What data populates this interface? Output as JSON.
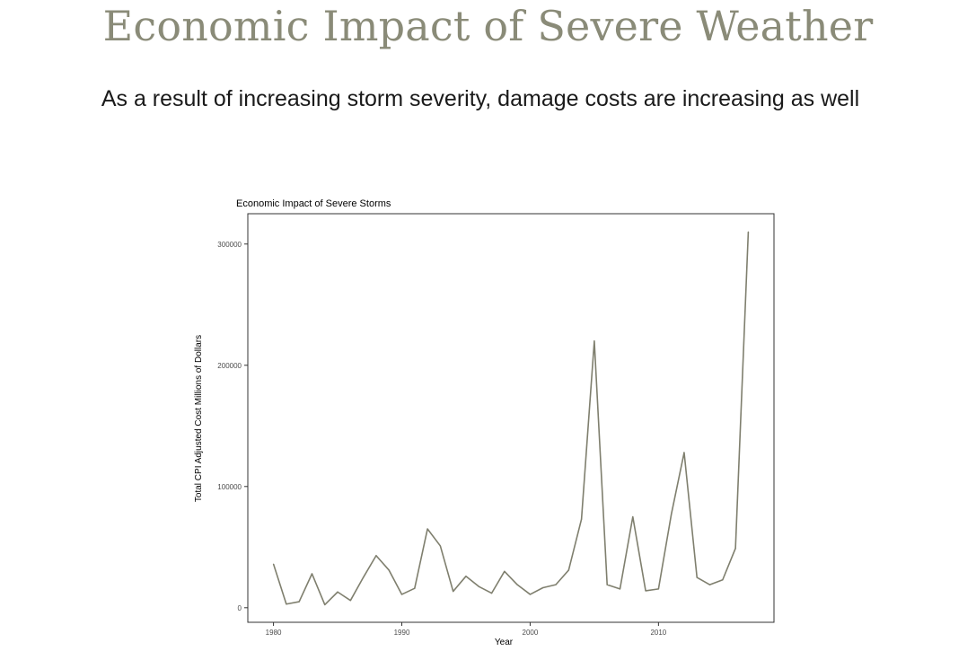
{
  "slide": {
    "title": "Economic Impact of Severe Weather",
    "subtitle": "As a result of increasing storm severity, damage costs are increasing as well"
  },
  "colors": {
    "title": "#8a8b78",
    "line": "#7f7f6e",
    "panel_border": "#333333"
  },
  "chart_data": {
    "type": "line",
    "title": "Economic Impact of Severe Storms",
    "xlabel": "Year",
    "ylabel": "Total CPI Adjusted Cost Millions of Dollars",
    "xlim": [
      1978,
      2019
    ],
    "ylim": [
      -12000,
      325000
    ],
    "x_ticks": [
      1980,
      1990,
      2000,
      2010
    ],
    "x_tick_labels": [
      "1980",
      "1990",
      "2000",
      "2010"
    ],
    "y_ticks": [
      0,
      100000,
      200000,
      300000
    ],
    "y_tick_labels": [
      "0",
      "100000",
      "200000",
      "300000"
    ],
    "grid": false,
    "legend": "none",
    "series": [
      {
        "x": [
          1980,
          1981,
          1982,
          1983,
          1984,
          1985,
          1986,
          1987,
          1988,
          1989,
          1990,
          1991,
          1992,
          1993,
          1994,
          1995,
          1996,
          1997,
          1998,
          1999,
          2000,
          2001,
          2002,
          2003,
          2004,
          2005,
          2006,
          2007,
          2008,
          2009,
          2010,
          2011,
          2012,
          2013,
          2014,
          2015,
          2016,
          2017
        ],
        "y": [
          36000,
          3000,
          5000,
          28000,
          2500,
          13000,
          6000,
          25000,
          43000,
          31000,
          11000,
          16000,
          65000,
          51000,
          13500,
          26000,
          17500,
          12000,
          30000,
          19000,
          11000,
          16500,
          19000,
          31000,
          73000,
          220000,
          19000,
          15500,
          75000,
          14000,
          15500,
          77000,
          128000,
          25000,
          19000,
          23000,
          49000,
          310000
        ]
      }
    ]
  }
}
